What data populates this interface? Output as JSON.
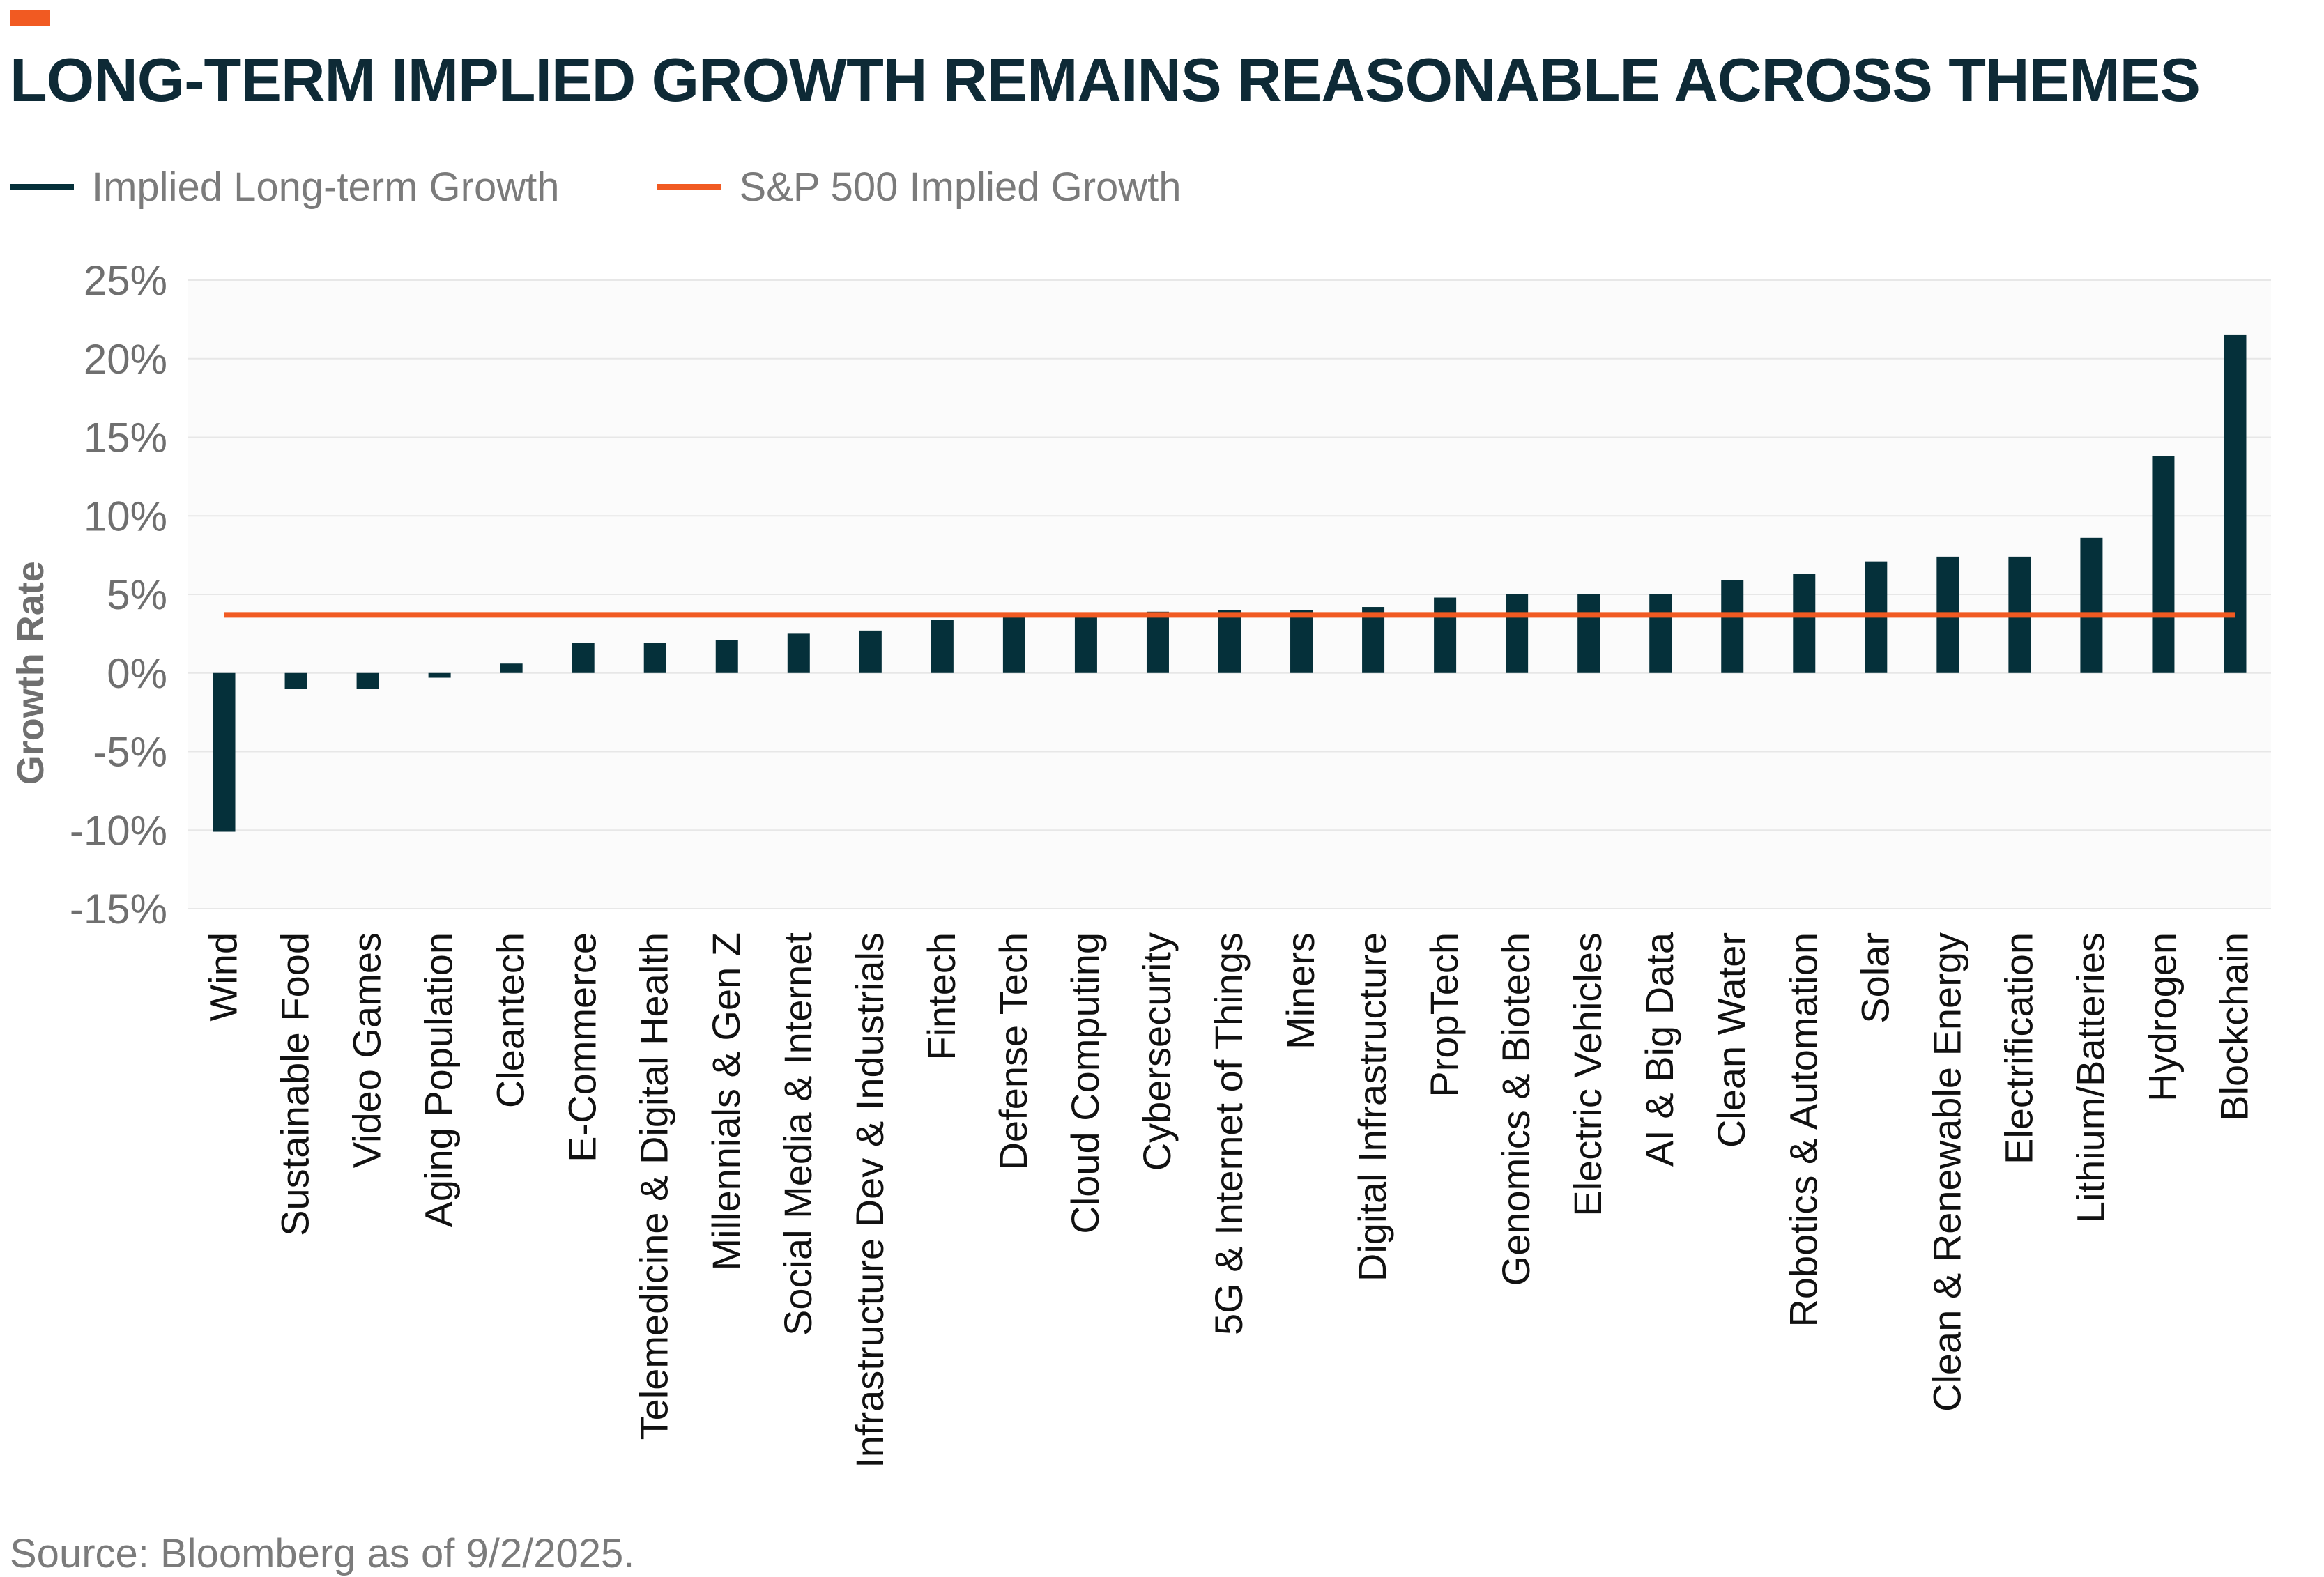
{
  "header": {
    "title": "LONG-TERM IMPLIED GROWTH REMAINS REASONABLE ACROSS THEMES"
  },
  "legend": {
    "items": [
      {
        "label": "Implied Long-term Growth",
        "color": "#05303a"
      },
      {
        "label": "S&P 500 Implied Growth",
        "color": "#f15a22"
      }
    ]
  },
  "footer": {
    "source": "Source: Bloomberg as of 9/2/2025."
  },
  "colors": {
    "accent": "#f15a22",
    "bar": "#05303a",
    "reference_line": "#f15a22",
    "title": "#0e2a36"
  },
  "chart_data": {
    "type": "bar",
    "title": "LONG-TERM IMPLIED GROWTH REMAINS REASONABLE ACROSS THEMES",
    "xlabel": "",
    "ylabel": "Growth Rate",
    "ylim": [
      -15,
      25
    ],
    "yticks": [
      25,
      20,
      15,
      10,
      5,
      0,
      -5,
      -10,
      -15
    ],
    "ytick_labels": [
      "25%",
      "20%",
      "15%",
      "10%",
      "5%",
      "0%",
      "-5%",
      "-10%",
      "-15%"
    ],
    "grid": true,
    "legend_position": "top-left",
    "categories": [
      "Wind",
      "Sustainable Food",
      "Video Games",
      "Aging Population",
      "Cleantech",
      "E-Commerce",
      "Telemedicine & Digital Health",
      "Millennials & Gen Z",
      "Social Media & Internet",
      "Infrastructure Dev & Industrials",
      "Fintech",
      "Defense Tech",
      "Cloud Computing",
      "Cybersecurity",
      "5G & Internet of Things",
      "Miners",
      "Digital Infrastructure",
      "PropTech",
      "Genomics & Biotech",
      "Electric Vehicles",
      "AI & Big Data",
      "Clean Water",
      "Robotics & Automation",
      "Solar",
      "Clean & Renewable Energy",
      "Electrification",
      "Lithium/Batteries",
      "Hydrogen",
      "Blockchain"
    ],
    "series": [
      {
        "name": "Implied Long-term Growth",
        "type": "bar",
        "values": [
          -10.1,
          -1.0,
          -1.0,
          -0.3,
          0.6,
          1.9,
          1.9,
          2.1,
          2.5,
          2.7,
          3.4,
          3.7,
          3.7,
          3.9,
          4.0,
          4.0,
          4.2,
          4.8,
          5.0,
          5.0,
          5.0,
          5.9,
          6.3,
          7.1,
          7.4,
          7.4,
          8.6,
          13.8,
          21.5
        ]
      },
      {
        "name": "S&P 500 Implied Growth",
        "type": "line",
        "value": 3.7
      }
    ]
  }
}
